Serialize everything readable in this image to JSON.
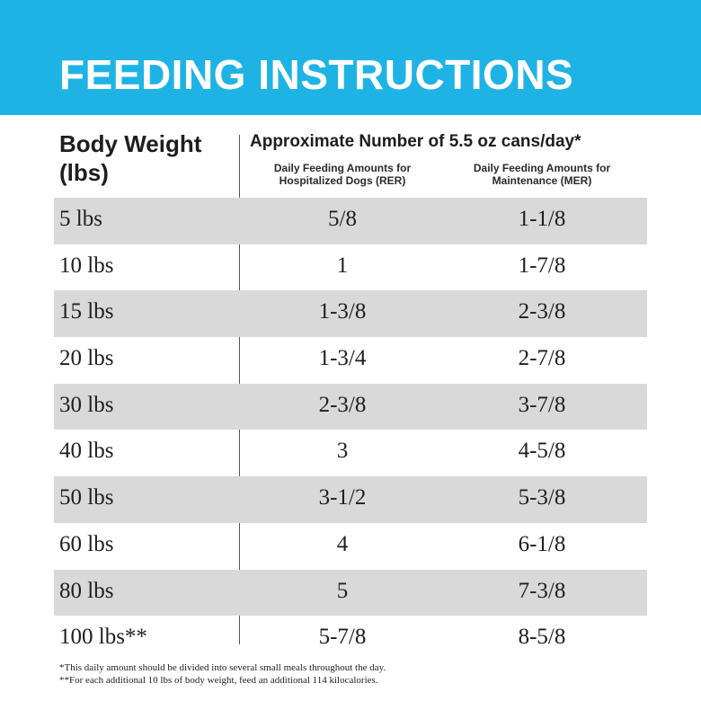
{
  "banner": {
    "title": "FEEDING INSTRUCTIONS",
    "color": "#1fb3e5"
  },
  "table": {
    "header_body_weight": "Body Weight (lbs)",
    "header_approx": "Approximate Number of 5.5 oz cans/day*",
    "subhead_rer": "Daily Feeding Amounts for Hospitalized Dogs (RER)",
    "subhead_mer": "Daily Feeding Amounts for Maintenance (MER)",
    "shade_color": "#d9d9d9",
    "rows": [
      {
        "weight": "5 lbs",
        "rer": "5/8",
        "mer": "1-1/8"
      },
      {
        "weight": "10 lbs",
        "rer": "1",
        "mer": "1-7/8"
      },
      {
        "weight": "15 lbs",
        "rer": "1-3/8",
        "mer": "2-3/8"
      },
      {
        "weight": "20 lbs",
        "rer": "1-3/4",
        "mer": "2-7/8"
      },
      {
        "weight": "30 lbs",
        "rer": "2-3/8",
        "mer": "3-7/8"
      },
      {
        "weight": "40 lbs",
        "rer": "3",
        "mer": "4-5/8"
      },
      {
        "weight": "50 lbs",
        "rer": "3-1/2",
        "mer": "5-3/8"
      },
      {
        "weight": "60 lbs",
        "rer": "4",
        "mer": "6-1/8"
      },
      {
        "weight": "80 lbs",
        "rer": "5",
        "mer": "7-3/8"
      },
      {
        "weight": "100 lbs**",
        "rer": "5-7/8",
        "mer": "8-5/8"
      }
    ]
  },
  "footnotes": {
    "one": "*This daily amount should be divided into several small meals throughout the day.",
    "two": "**For each additional 10 lbs of body weight, feed an additional 114 kilocalories."
  }
}
